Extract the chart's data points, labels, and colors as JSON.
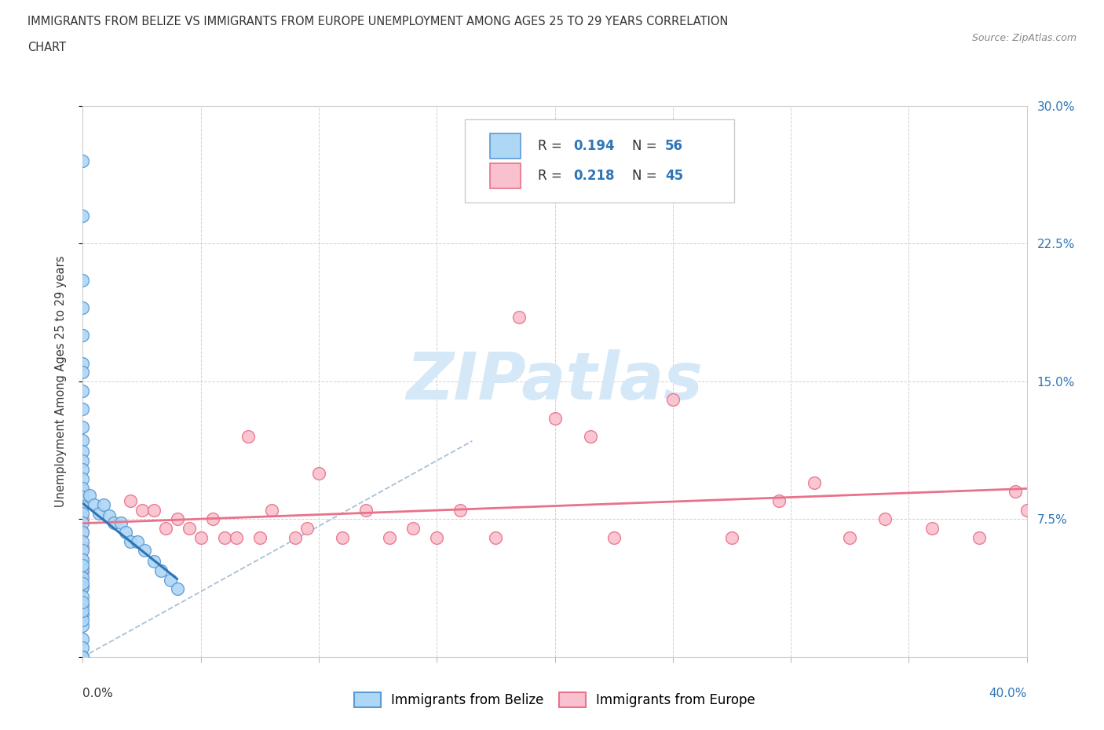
{
  "title_line1": "IMMIGRANTS FROM BELIZE VS IMMIGRANTS FROM EUROPE UNEMPLOYMENT AMONG AGES 25 TO 29 YEARS CORRELATION",
  "title_line2": "CHART",
  "source_text": "Source: ZipAtlas.com",
  "ylabel": "Unemployment Among Ages 25 to 29 years",
  "xlim": [
    0.0,
    0.4
  ],
  "ylim": [
    0.0,
    0.3
  ],
  "xtick_positions": [
    0.0,
    0.05,
    0.1,
    0.15,
    0.2,
    0.25,
    0.3,
    0.35,
    0.4
  ],
  "ytick_positions": [
    0.0,
    0.075,
    0.15,
    0.225,
    0.3
  ],
  "yticklabels_right": [
    "",
    "7.5%",
    "15.0%",
    "22.5%",
    "30.0%"
  ],
  "belize_fill": "#aed6f5",
  "belize_edge": "#5b9bd5",
  "belize_line_color": "#2e75b6",
  "europe_fill": "#f9c0ce",
  "europe_edge": "#e8728a",
  "europe_line_color": "#e8728a",
  "diag_color": "#9ab5d0",
  "label_color_blue": "#2e75b6",
  "text_color": "#333333",
  "source_color": "#888888",
  "watermark_color": "#d4e8f7",
  "grid_color": "#d0d0d0",
  "bg_color": "#ffffff",
  "belize_R": 0.194,
  "belize_N": 56,
  "europe_R": 0.218,
  "europe_N": 45,
  "belize_x": [
    0.0,
    0.0,
    0.0,
    0.0,
    0.0,
    0.0,
    0.0,
    0.0,
    0.0,
    0.0,
    0.0,
    0.0,
    0.0,
    0.0,
    0.0,
    0.0,
    0.0,
    0.0,
    0.0,
    0.0,
    0.0,
    0.0,
    0.0,
    0.0,
    0.0,
    0.0,
    0.0,
    0.0,
    0.0,
    0.0,
    0.0,
    0.0,
    0.003,
    0.005,
    0.007,
    0.009,
    0.011,
    0.013,
    0.016,
    0.018,
    0.02,
    0.023,
    0.026,
    0.03,
    0.033,
    0.037,
    0.04,
    0.0,
    0.0,
    0.0,
    0.0,
    0.0,
    0.0,
    0.0,
    0.0,
    0.0
  ],
  "belize_y": [
    0.27,
    0.24,
    0.205,
    0.19,
    0.175,
    0.16,
    0.155,
    0.145,
    0.135,
    0.125,
    0.118,
    0.112,
    0.107,
    0.102,
    0.097,
    0.092,
    0.087,
    0.082,
    0.078,
    0.073,
    0.068,
    0.063,
    0.058,
    0.053,
    0.048,
    0.043,
    0.038,
    0.033,
    0.028,
    0.023,
    0.017,
    0.01,
    0.088,
    0.083,
    0.078,
    0.083,
    0.077,
    0.073,
    0.073,
    0.068,
    0.063,
    0.063,
    0.058,
    0.052,
    0.047,
    0.042,
    0.037,
    0.005,
    0.0,
    0.0,
    0.0,
    0.02,
    0.025,
    0.03,
    0.04,
    0.05
  ],
  "europe_x": [
    0.0,
    0.0,
    0.0,
    0.0,
    0.0,
    0.0,
    0.0,
    0.0,
    0.02,
    0.025,
    0.03,
    0.035,
    0.04,
    0.045,
    0.05,
    0.055,
    0.06,
    0.065,
    0.07,
    0.075,
    0.08,
    0.09,
    0.095,
    0.1,
    0.11,
    0.12,
    0.13,
    0.14,
    0.15,
    0.16,
    0.175,
    0.185,
    0.2,
    0.215,
    0.225,
    0.25,
    0.275,
    0.295,
    0.31,
    0.325,
    0.34,
    0.36,
    0.38,
    0.395,
    0.4
  ],
  "europe_y": [
    0.09,
    0.082,
    0.075,
    0.068,
    0.06,
    0.053,
    0.046,
    0.038,
    0.085,
    0.08,
    0.08,
    0.07,
    0.075,
    0.07,
    0.065,
    0.075,
    0.065,
    0.065,
    0.12,
    0.065,
    0.08,
    0.065,
    0.07,
    0.1,
    0.065,
    0.08,
    0.065,
    0.07,
    0.065,
    0.08,
    0.065,
    0.185,
    0.13,
    0.12,
    0.065,
    0.14,
    0.065,
    0.085,
    0.095,
    0.065,
    0.075,
    0.07,
    0.065,
    0.09,
    0.08
  ],
  "watermark": "ZIPatlas"
}
